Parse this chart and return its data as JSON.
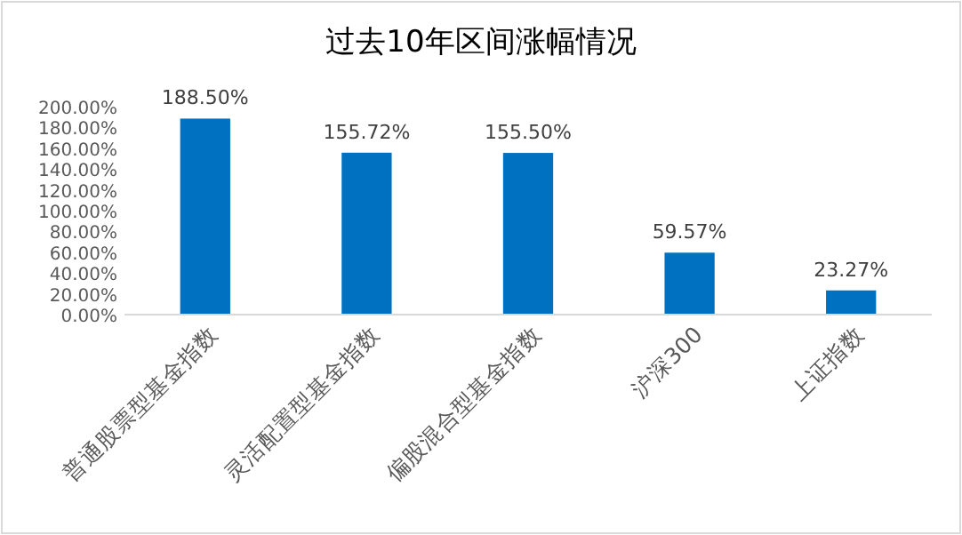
{
  "chart_data": {
    "type": "bar",
    "title": "过去10年区间涨幅情况",
    "categories": [
      "普通股票型基金指数",
      "灵活配置型基金指数",
      "偏股混合型基金指数",
      "沪深300",
      "上证指数"
    ],
    "values": [
      188.5,
      155.72,
      155.5,
      59.57,
      23.27
    ],
    "value_labels": [
      "188.50%",
      "155.72%",
      "155.50%",
      "59.57%",
      "23.27%"
    ],
    "color": "#0070c0",
    "ylim": [
      0,
      200
    ],
    "yticks": [
      {
        "value": 0,
        "label": "0.00%"
      },
      {
        "value": 20,
        "label": "20.00%"
      },
      {
        "value": 40,
        "label": "40.00%"
      },
      {
        "value": 60,
        "label": "60.00%"
      },
      {
        "value": 80,
        "label": "80.00%"
      },
      {
        "value": 100,
        "label": "100.00%"
      },
      {
        "value": 120,
        "label": "120.00%"
      },
      {
        "value": 140,
        "label": "140.00%"
      },
      {
        "value": 160,
        "label": "160.00%"
      },
      {
        "value": 180,
        "label": "180.00%"
      },
      {
        "value": 200,
        "label": "200.00%"
      }
    ],
    "grid": false
  }
}
